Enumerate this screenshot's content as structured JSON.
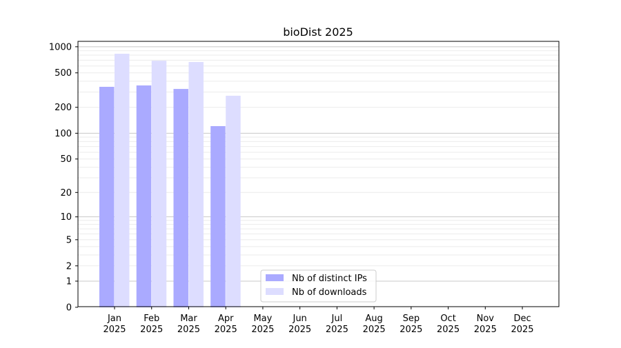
{
  "chart_data": {
    "type": "bar",
    "title": "bioDist 2025",
    "xlabel": "",
    "ylabel": "",
    "yscale": "log(y+1)",
    "ylim": [
      0,
      1100
    ],
    "yticks": [
      0,
      1,
      2,
      5,
      10,
      20,
      50,
      100,
      200,
      500,
      1000
    ],
    "grid": true,
    "legend_position": "bottom-center",
    "categories": [
      [
        "Jan",
        "2025"
      ],
      [
        "Feb",
        "2025"
      ],
      [
        "Mar",
        "2025"
      ],
      [
        "Apr",
        "2025"
      ],
      [
        "May",
        "2025"
      ],
      [
        "Jun",
        "2025"
      ],
      [
        "Jul",
        "2025"
      ],
      [
        "Aug",
        "2025"
      ],
      [
        "Sep",
        "2025"
      ],
      [
        "Oct",
        "2025"
      ],
      [
        "Nov",
        "2025"
      ],
      [
        "Dec",
        "2025"
      ]
    ],
    "series": [
      {
        "name": "Nb of distinct IPs",
        "color": "#aaaaff",
        "values": [
          345,
          358,
          326,
          121,
          0,
          0,
          0,
          0,
          0,
          0,
          0,
          0
        ]
      },
      {
        "name": "Nb of downloads",
        "color": "#ddddff",
        "values": [
          831,
          690,
          667,
          272,
          0,
          0,
          0,
          0,
          0,
          0,
          0,
          0
        ]
      }
    ]
  }
}
